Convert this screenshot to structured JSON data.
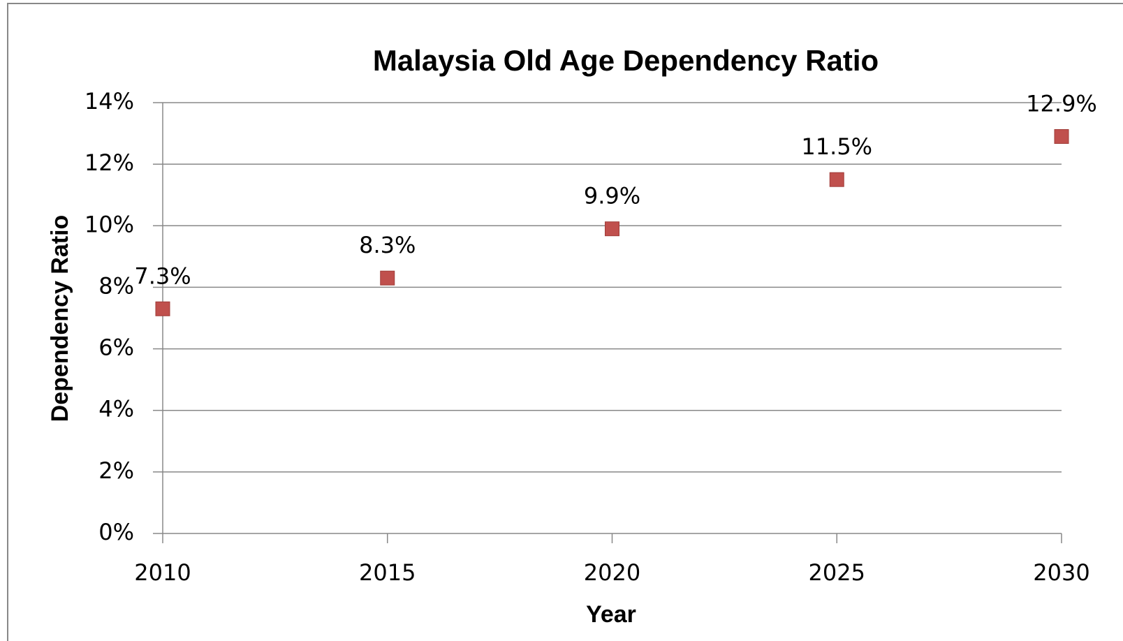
{
  "chart_data": {
    "type": "scatter",
    "title": "Malaysia Old Age Dependency Ratio",
    "x_label": "Year",
    "y_label": "Dependency Ratio",
    "x": [
      2010,
      2015,
      2020,
      2025,
      2030
    ],
    "series": [
      {
        "color": "#c0504d",
        "values": [
          7.3,
          8.3,
          9.9,
          11.5,
          12.9
        ],
        "value_labels": [
          "7.3%",
          "8.3%",
          "9.9%",
          "11.5%",
          "12.9%"
        ]
      }
    ],
    "xlim": [
      2010,
      2030
    ],
    "xticks": [
      2010,
      2015,
      2020,
      2025,
      2030
    ],
    "ylim": [
      0,
      14
    ],
    "yticks": [
      {
        "value": 0,
        "label": "0%"
      },
      {
        "value": 2,
        "label": "2%"
      },
      {
        "value": 4,
        "label": "4%"
      },
      {
        "value": 6,
        "label": "6%"
      },
      {
        "value": 8,
        "label": "8%"
      },
      {
        "value": 10,
        "label": "10%"
      },
      {
        "value": 12,
        "label": "12%"
      },
      {
        "value": 14,
        "label": "14%"
      }
    ],
    "grid": true
  }
}
